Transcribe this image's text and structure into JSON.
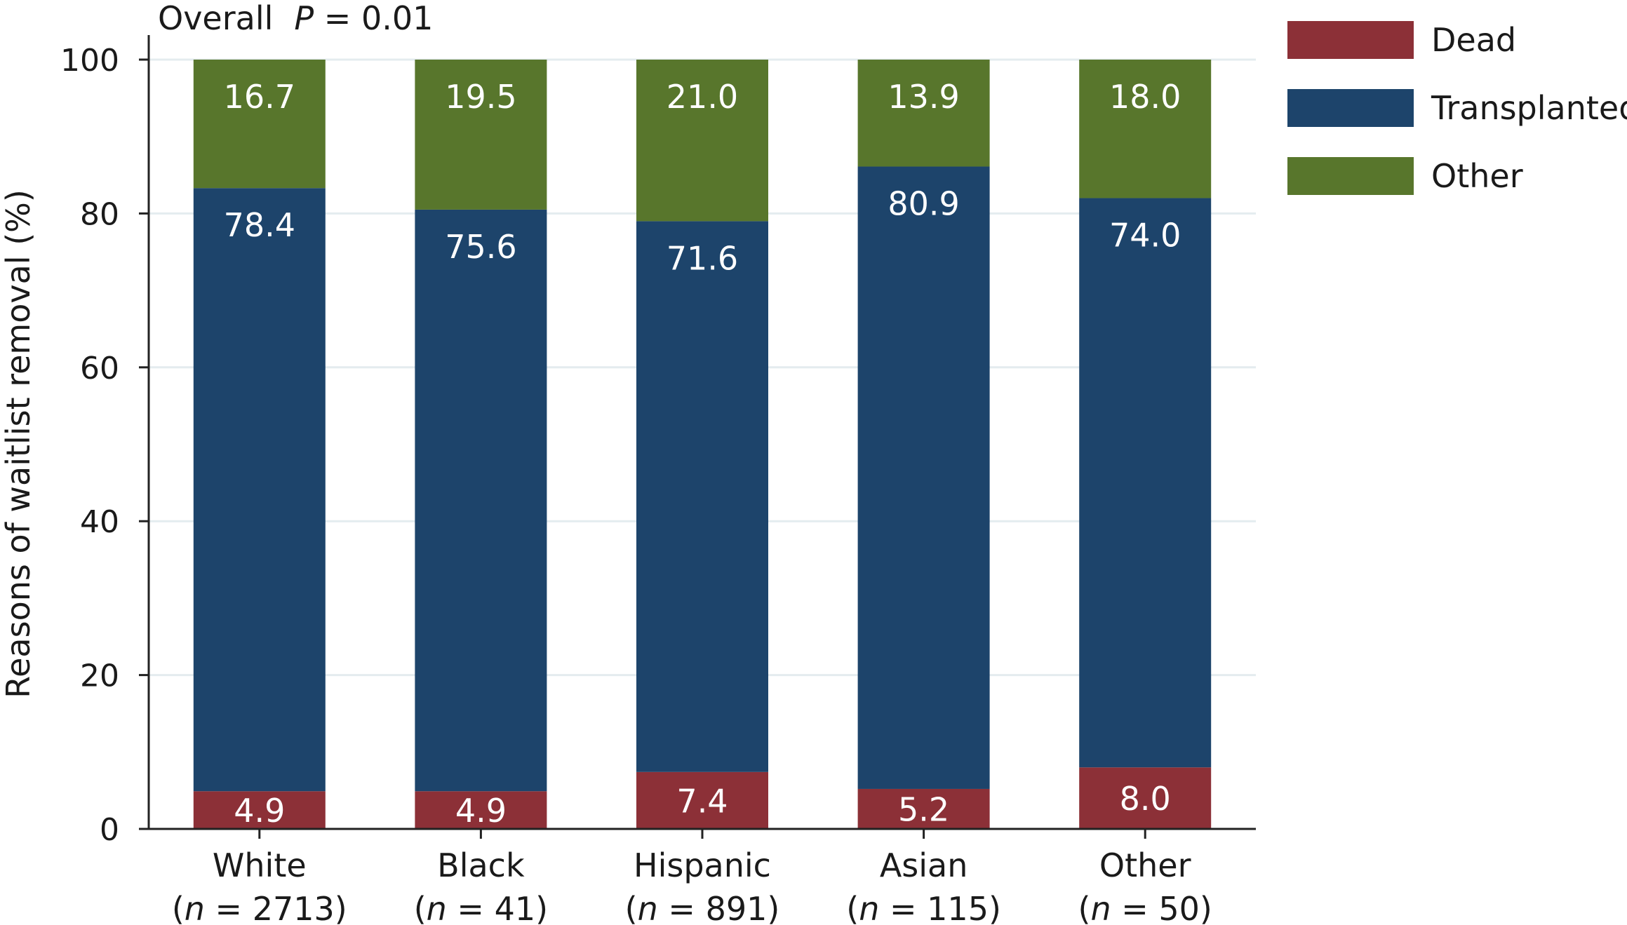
{
  "chart_data": {
    "type": "bar",
    "stacked": true,
    "annotation": {
      "prefix": "Overall",
      "stat": "P",
      "rest": " = 0.01"
    },
    "ylabel": "Reasons of waitlist removal (%)",
    "xlabel": "",
    "ylim": [
      0,
      100
    ],
    "yticks": [
      "0",
      "20",
      "40",
      "60",
      "80",
      "100"
    ],
    "grid": true,
    "legend_position": "top-right",
    "categories": [
      "White",
      "Black",
      "Hispanic",
      "Asian",
      "Other"
    ],
    "category_n": [
      "2713",
      "41",
      "891",
      "115",
      "50"
    ],
    "series": [
      {
        "name": "Dead",
        "color": "#8c3037",
        "values": [
          4.9,
          4.9,
          7.4,
          5.2,
          8.0
        ],
        "labels": [
          "4.9",
          "4.9",
          "7.4",
          "5.2",
          "8.0"
        ]
      },
      {
        "name": "Transplanted",
        "color": "#1d446b",
        "values": [
          78.4,
          75.6,
          71.6,
          80.9,
          74.0
        ],
        "labels": [
          "78.4",
          "75.6",
          "71.6",
          "80.9",
          "74.0"
        ]
      },
      {
        "name": "Other",
        "color": "#58762c",
        "values": [
          16.7,
          19.5,
          21.0,
          13.9,
          18.0
        ],
        "labels": [
          "16.7",
          "19.5",
          "21.0",
          "13.9",
          "18.0"
        ]
      }
    ]
  }
}
